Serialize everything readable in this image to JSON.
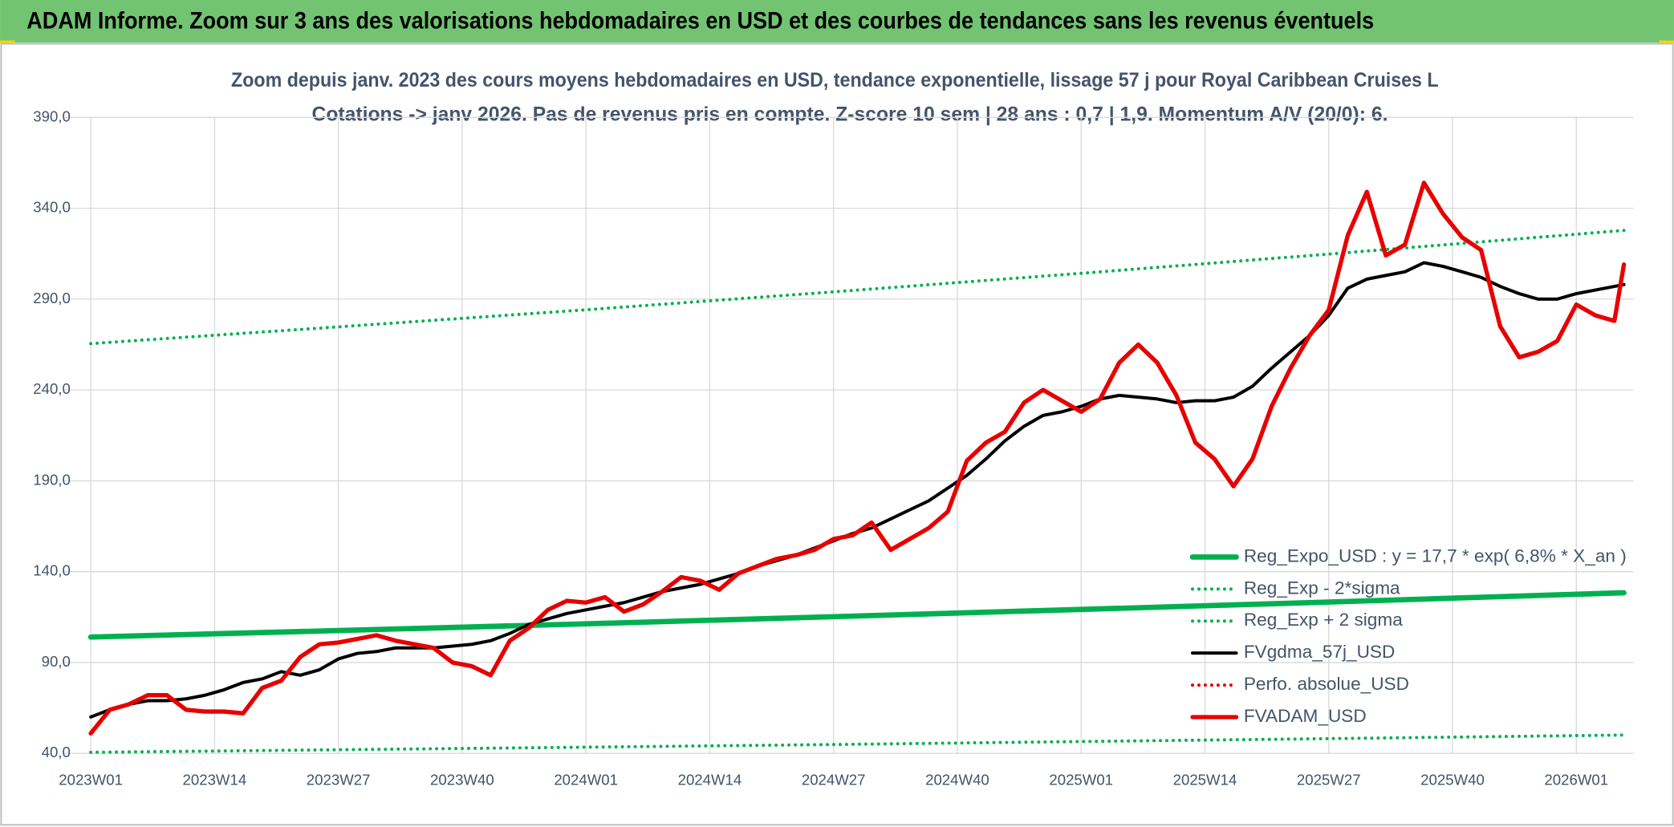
{
  "header": {
    "title": "ADAM Informe. Zoom sur 3 ans des valorisations hebdomadaires en USD et des courbes de tendances sans les revenus éventuels"
  },
  "chart_data": {
    "type": "line",
    "title": "Zoom depuis janv. 2023 des cours moyens hebdomadaires en USD, tendance exponentielle, lissage 57 j pour Royal Caribbean Cruises L",
    "subtitle": "Cotations -> janv 2026. Pas de revenus pris en compte. Z-score 10 sem | 28 ans : 0,7  | 1,9. Momentum A/V (20/0): 6.",
    "xlim": [
      0,
      162
    ],
    "xticks": [
      {
        "value": 0,
        "label": "2023W01"
      },
      {
        "value": 13,
        "label": "2023W14"
      },
      {
        "value": 26,
        "label": "2023W27"
      },
      {
        "value": 39,
        "label": "2023W40"
      },
      {
        "value": 52,
        "label": "2024W01"
      },
      {
        "value": 65,
        "label": "2024W14"
      },
      {
        "value": 78,
        "label": "2024W27"
      },
      {
        "value": 91,
        "label": "2024W40"
      },
      {
        "value": 104,
        "label": "2025W01"
      },
      {
        "value": 117,
        "label": "2025W14"
      },
      {
        "value": 130,
        "label": "2025W27"
      },
      {
        "value": 143,
        "label": "2025W40"
      },
      {
        "value": 156,
        "label": "2026W01"
      }
    ],
    "ylim": [
      40,
      390
    ],
    "yticks": [
      {
        "value": 40,
        "label": "40,0"
      },
      {
        "value": 90,
        "label": "90,0"
      },
      {
        "value": 140,
        "label": "140,0"
      },
      {
        "value": 190,
        "label": "190,0"
      },
      {
        "value": 240,
        "label": "240,0"
      },
      {
        "value": 290,
        "label": "290,0"
      },
      {
        "value": 340,
        "label": "340,0"
      },
      {
        "value": 390,
        "label": "390,0"
      }
    ],
    "grid": true,
    "legend": "bottom-right",
    "series": [
      {
        "name": "Reg_Expo_USD : y = 17,7 * exp( 6,8% *  X_an )",
        "color": "#00b050",
        "style": "solid",
        "width": 5,
        "x": [
          0,
          26,
          52,
          78,
          104,
          130,
          161
        ],
        "values": [
          104.0,
          107.6,
          111.3,
          115.2,
          119.2,
          123.3,
          128.4
        ]
      },
      {
        "name": "Reg_Exp - 2*sigma",
        "color": "#00b050",
        "style": "dotted",
        "width": 3,
        "x": [
          0,
          26,
          52,
          78,
          104,
          130,
          161
        ],
        "values": [
          40.6,
          42.0,
          43.4,
          44.9,
          46.5,
          48.1,
          50.1
        ]
      },
      {
        "name": "Reg_Exp + 2 sigma",
        "color": "#00b050",
        "style": "dotted",
        "width": 3,
        "x": [
          0,
          26,
          52,
          78,
          104,
          130,
          161
        ],
        "values": [
          265.5,
          274.7,
          284.1,
          294.0,
          304.2,
          314.8,
          327.8
        ]
      },
      {
        "name": "FVgdma_57j_USD",
        "color": "#000000",
        "style": "solid",
        "width": 3,
        "x": [
          0,
          2,
          4,
          6,
          8,
          10,
          12,
          14,
          16,
          18,
          20,
          22,
          24,
          26,
          28,
          30,
          32,
          34,
          36,
          38,
          40,
          42,
          44,
          46,
          48,
          50,
          52,
          54,
          56,
          58,
          60,
          62,
          64,
          66,
          68,
          70,
          72,
          74,
          76,
          78,
          80,
          82,
          84,
          86,
          88,
          90,
          92,
          94,
          96,
          98,
          100,
          102,
          104,
          106,
          108,
          110,
          112,
          114,
          116,
          118,
          120,
          122,
          124,
          126,
          128,
          130,
          132,
          134,
          136,
          138,
          140,
          142,
          144,
          146,
          148,
          150,
          152,
          154,
          156,
          158,
          161
        ],
        "values": [
          60,
          64,
          67,
          69,
          69,
          70,
          72,
          75,
          79,
          81,
          85,
          83,
          86,
          92,
          95,
          96,
          98,
          98,
          98,
          99,
          100,
          102,
          106,
          111,
          114,
          117,
          119,
          121,
          123,
          126,
          129,
          131,
          133,
          136,
          139,
          143,
          146,
          149,
          153,
          157,
          161,
          164,
          169,
          174,
          179,
          186,
          193,
          202,
          212,
          220,
          226,
          228,
          231,
          235,
          237,
          236,
          235,
          233,
          234,
          234,
          236,
          242,
          252,
          261,
          270,
          281,
          296,
          301,
          303,
          305,
          310,
          308,
          305,
          302,
          297,
          293,
          290,
          290,
          293,
          295,
          298
        ]
      },
      {
        "name": "Perfo. absolue_USD",
        "color": "#e00000",
        "style": "dotted",
        "width": 3,
        "x": [],
        "values": []
      },
      {
        "name": "FVADAM_USD",
        "color": "#e80000",
        "style": "solid",
        "width": 4,
        "x": [
          0,
          2,
          4,
          6,
          8,
          10,
          12,
          14,
          16,
          18,
          20,
          22,
          24,
          26,
          28,
          30,
          32,
          34,
          36,
          38,
          40,
          42,
          44,
          46,
          48,
          50,
          52,
          54,
          56,
          58,
          60,
          62,
          64,
          66,
          68,
          70,
          72,
          74,
          76,
          78,
          80,
          82,
          84,
          86,
          88,
          90,
          92,
          94,
          96,
          98,
          100,
          102,
          104,
          106,
          108,
          110,
          112,
          114,
          116,
          118,
          120,
          122,
          124,
          126,
          128,
          130,
          132,
          134,
          136,
          138,
          140,
          142,
          144,
          146,
          148,
          150,
          152,
          154,
          156,
          158,
          160,
          161
        ],
        "values": [
          51,
          64,
          67,
          72,
          72,
          64,
          63,
          63,
          62,
          76,
          80,
          93,
          100,
          101,
          103,
          105,
          102,
          100,
          98,
          90,
          88,
          83,
          102,
          109,
          119,
          124,
          123,
          126,
          118,
          122,
          129,
          137,
          135,
          130,
          139,
          143,
          147,
          149,
          152,
          158,
          160,
          167,
          152,
          158,
          164,
          173,
          201,
          211,
          217,
          233,
          240,
          234,
          228,
          235,
          255,
          265,
          255,
          237,
          211,
          202,
          187,
          202,
          231,
          252,
          270,
          284,
          325,
          349,
          314,
          320,
          354,
          337,
          324,
          317,
          275,
          258,
          261,
          267,
          287,
          281,
          278,
          309
        ]
      }
    ]
  }
}
